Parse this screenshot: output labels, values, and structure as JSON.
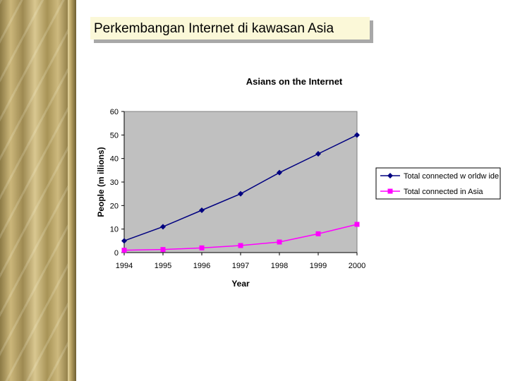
{
  "slide": {
    "title": "Perkembangan Internet di kawasan Asia"
  },
  "chart_data": {
    "type": "line",
    "title": "Asians on the Internet",
    "xlabel": "Year",
    "ylabel": "People (m illions)",
    "categories": [
      "1994",
      "1995",
      "1996",
      "1997",
      "1998",
      "1999",
      "2000"
    ],
    "ylim": [
      0,
      60
    ],
    "yticks": [
      "0",
      "10",
      "20",
      "30",
      "40",
      "50",
      "60"
    ],
    "grid": false,
    "plot_background": "#c0c0c0",
    "legend_position": "right",
    "series": [
      {
        "name": "Total connected w orldw ide",
        "color": "#000080",
        "marker": "diamond",
        "values": [
          5,
          11,
          18,
          25,
          34,
          42,
          50
        ]
      },
      {
        "name": "Total connected in Asia",
        "color": "#ff00ff",
        "marker": "square",
        "values": [
          1,
          1.3,
          2,
          3,
          4.5,
          8,
          12
        ]
      }
    ]
  }
}
